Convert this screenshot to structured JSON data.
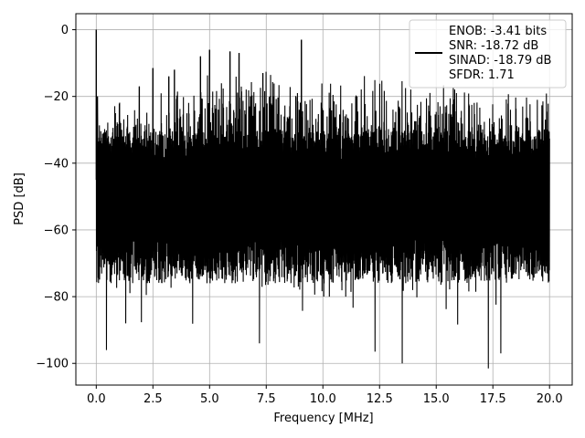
{
  "chart_data": {
    "type": "line",
    "title": "",
    "xlabel": "Frequency [MHz]",
    "ylabel": "PSD [dB]",
    "xlim": [
      -0.9,
      21.0
    ],
    "ylim": [
      -106.5,
      4.8
    ],
    "xticks": [
      0.0,
      2.5,
      5.0,
      7.5,
      10.0,
      12.5,
      15.0,
      17.5,
      20.0
    ],
    "xtick_labels": [
      "0.0",
      "2.5",
      "5.0",
      "7.5",
      "10.0",
      "12.5",
      "15.0",
      "17.5",
      "20.0"
    ],
    "yticks": [
      0,
      -20,
      -40,
      -60,
      -80,
      -100
    ],
    "ytick_labels": [
      "0",
      "−20",
      "−40",
      "−60",
      "−80",
      "−100"
    ],
    "grid": true,
    "legend_position": "top-right",
    "legend_lines": [
      "ENOB: -3.41 bits",
      "SNR: -18.72 dB",
      "SINAD: -18.79 dB",
      "SFDR: 1.71"
    ],
    "series": [
      {
        "color": "#000000",
        "description": "dense noisy PSD spectrum, 0 to 20 MHz",
        "peaks": [
          {
            "x": 0.0,
            "y": 0.0
          },
          {
            "x": 0.05,
            "y": -20.0
          },
          {
            "x": 9.05,
            "y": -3.0
          },
          {
            "x": 5.0,
            "y": -6.0
          },
          {
            "x": 5.9,
            "y": -6.5
          },
          {
            "x": 6.3,
            "y": -7.0
          },
          {
            "x": 4.6,
            "y": -8.0
          },
          {
            "x": 2.5,
            "y": -11.5
          },
          {
            "x": 3.45,
            "y": -12.0
          },
          {
            "x": 3.2,
            "y": -14.0
          },
          {
            "x": 1.9,
            "y": -17.0
          },
          {
            "x": 7.35,
            "y": -13.0
          }
        ],
        "troughs": [
          {
            "x": 0.45,
            "y": -96.0
          },
          {
            "x": 1.3,
            "y": -88.0
          },
          {
            "x": 7.2,
            "y": -94.0
          },
          {
            "x": 12.3,
            "y": -96.5
          },
          {
            "x": 13.5,
            "y": -100.0
          },
          {
            "x": 17.3,
            "y": -101.5
          },
          {
            "x": 17.85,
            "y": -97.0
          }
        ]
      }
    ]
  }
}
